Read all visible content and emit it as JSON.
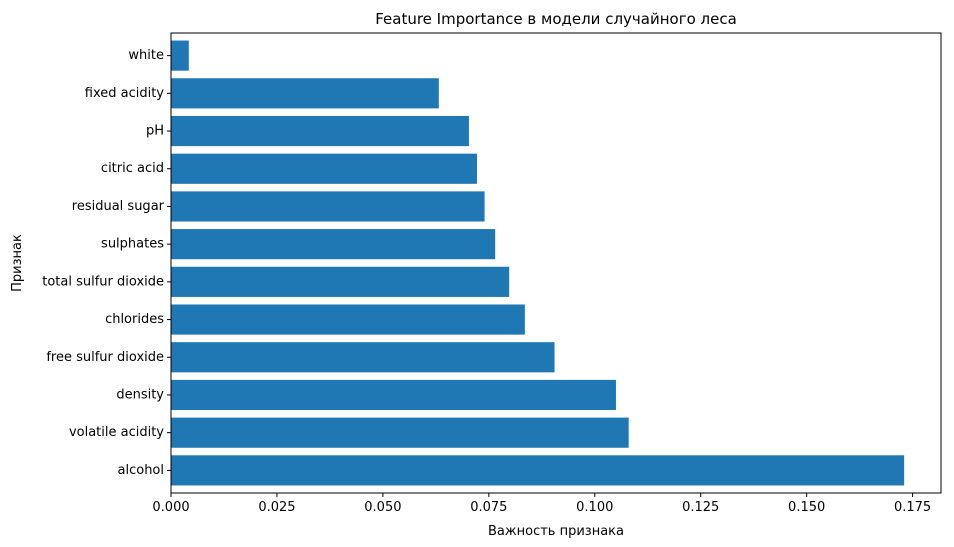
{
  "chart_data": {
    "type": "bar",
    "orientation": "horizontal",
    "title": "Feature Importance в модели случайного леса",
    "xlabel": "Важность признака",
    "ylabel": "Признак",
    "categories": [
      "alcohol",
      "volatile acidity",
      "density",
      "free sulfur dioxide",
      "chlorides",
      "total sulfur dioxide",
      "sulphates",
      "residual sugar",
      "citric acid",
      "pH",
      "fixed acidity",
      "white"
    ],
    "values": [
      0.173,
      0.108,
      0.105,
      0.0905,
      0.0835,
      0.0798,
      0.0765,
      0.074,
      0.0722,
      0.0703,
      0.0632,
      0.0042
    ],
    "xlim": [
      0,
      0.1817
    ],
    "xticks": [
      0.0,
      0.025,
      0.05,
      0.075,
      0.1,
      0.125,
      0.15,
      0.175
    ],
    "xtick_labels": [
      "0.000",
      "0.025",
      "0.050",
      "0.075",
      "0.100",
      "0.125",
      "0.150",
      "0.175"
    ],
    "bar_color": "#1f77b4",
    "grid": false,
    "legend": "none"
  }
}
